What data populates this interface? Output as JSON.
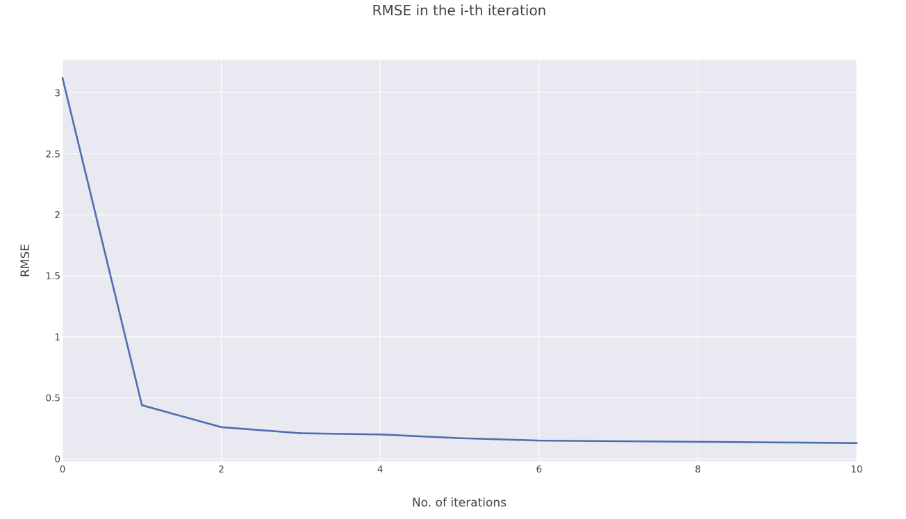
{
  "chart_data": {
    "type": "line",
    "title": "RMSE in the i-th iteration",
    "xlabel": "No. of iterations",
    "ylabel": "RMSE",
    "xlim": [
      0,
      10
    ],
    "ylim": [
      -0.02,
      3.27
    ],
    "x_ticks": [
      0,
      2,
      4,
      6,
      8,
      10
    ],
    "x_tick_labels": [
      "0",
      "2",
      "4",
      "6",
      "8",
      "10"
    ],
    "y_ticks": [
      0,
      0.5,
      1,
      1.5,
      2,
      2.5,
      3
    ],
    "y_tick_labels": [
      "0",
      "0.5",
      "1",
      "1.5",
      "2",
      "2.5",
      "3"
    ],
    "grid": true,
    "legend": "none",
    "plot_background": "#e9e9f1",
    "grid_color": "#ffffff",
    "series": [
      {
        "color": "#4c6fb0",
        "x": [
          0,
          1,
          2,
          3,
          4,
          5,
          6,
          7,
          8,
          9,
          10
        ],
        "y": [
          3.12,
          0.44,
          0.26,
          0.21,
          0.2,
          0.17,
          0.15,
          0.145,
          0.14,
          0.135,
          0.13
        ]
      }
    ]
  }
}
